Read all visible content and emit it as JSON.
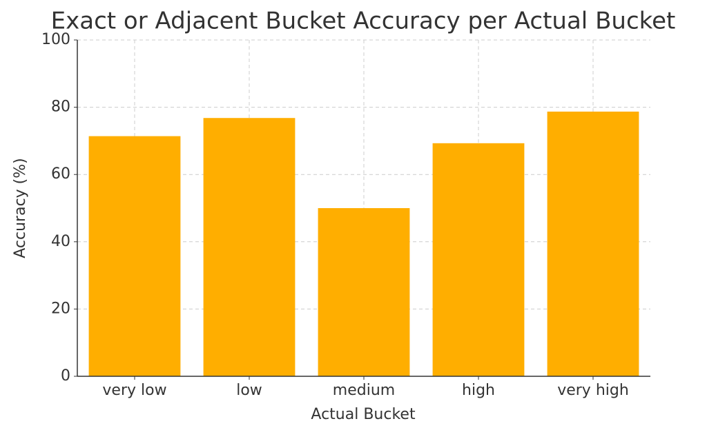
{
  "chart_data": {
    "type": "bar",
    "title": "Exact or Adjacent Bucket Accuracy per Actual Bucket",
    "x_label": "Actual Bucket",
    "y_label": "Accuracy (%)",
    "categories": [
      "very low",
      "low",
      "medium",
      "high",
      "very high"
    ],
    "values": [
      71.4,
      76.8,
      50.0,
      69.3,
      78.7
    ],
    "color": "#ffae00",
    "ylim": [
      0,
      100
    ],
    "yticks": [
      0,
      20,
      40,
      60,
      80,
      100
    ],
    "grid": true
  }
}
